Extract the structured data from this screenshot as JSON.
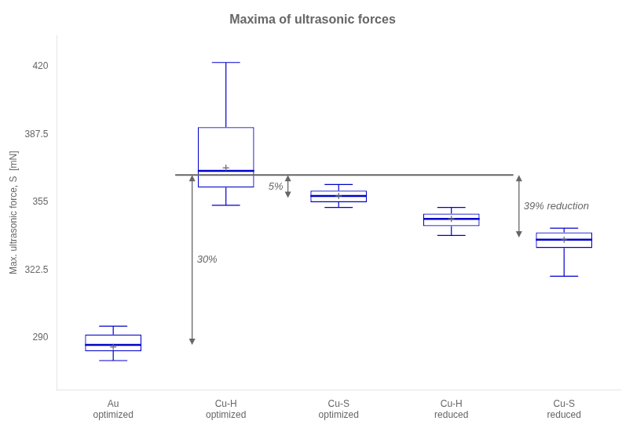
{
  "chart_data": {
    "type": "box",
    "title": "Maxima of ultrasonic forces",
    "ylabel": "Max. ultrasonic force, S  [mN]",
    "categories": [
      "Au\noptimized",
      "Cu-H\noptimized",
      "Cu-S\noptimized",
      "Cu-H\nreduced",
      "Cu-S\nreduced"
    ],
    "boxes": [
      {
        "q1": 283.5,
        "median": 286.5,
        "q3": 291.5,
        "whislo": 279.0,
        "whishi": 295.5,
        "mean": 285.5
      },
      {
        "q1": 362.0,
        "median": 370.0,
        "q3": 391.0,
        "whislo": 353.5,
        "whishi": 422.0,
        "mean": 371.5
      },
      {
        "q1": 355.0,
        "median": 358.0,
        "q3": 360.5,
        "whislo": 352.5,
        "whishi": 363.5,
        "mean": 358.0
      },
      {
        "q1": 343.5,
        "median": 347.0,
        "q3": 349.5,
        "whislo": 339.0,
        "whishi": 352.5,
        "mean": 347.0
      },
      {
        "q1": 333.0,
        "median": 337.0,
        "q3": 340.5,
        "whislo": 319.5,
        "whishi": 342.5,
        "mean": 337.0
      }
    ],
    "color": "#0000CC",
    "ylim": [
      265,
      435
    ],
    "yticks": [
      290,
      322.5,
      355,
      387.5,
      420
    ],
    "grid": false,
    "ref_line": 368.0,
    "annotations": [
      {
        "text": "30%",
        "from": 286.5,
        "to": 368.0
      },
      {
        "text": "5%",
        "from": 357.0,
        "to": 368.0
      },
      {
        "text": "39% reduction",
        "from": 338.0,
        "to": 368.0
      }
    ]
  }
}
